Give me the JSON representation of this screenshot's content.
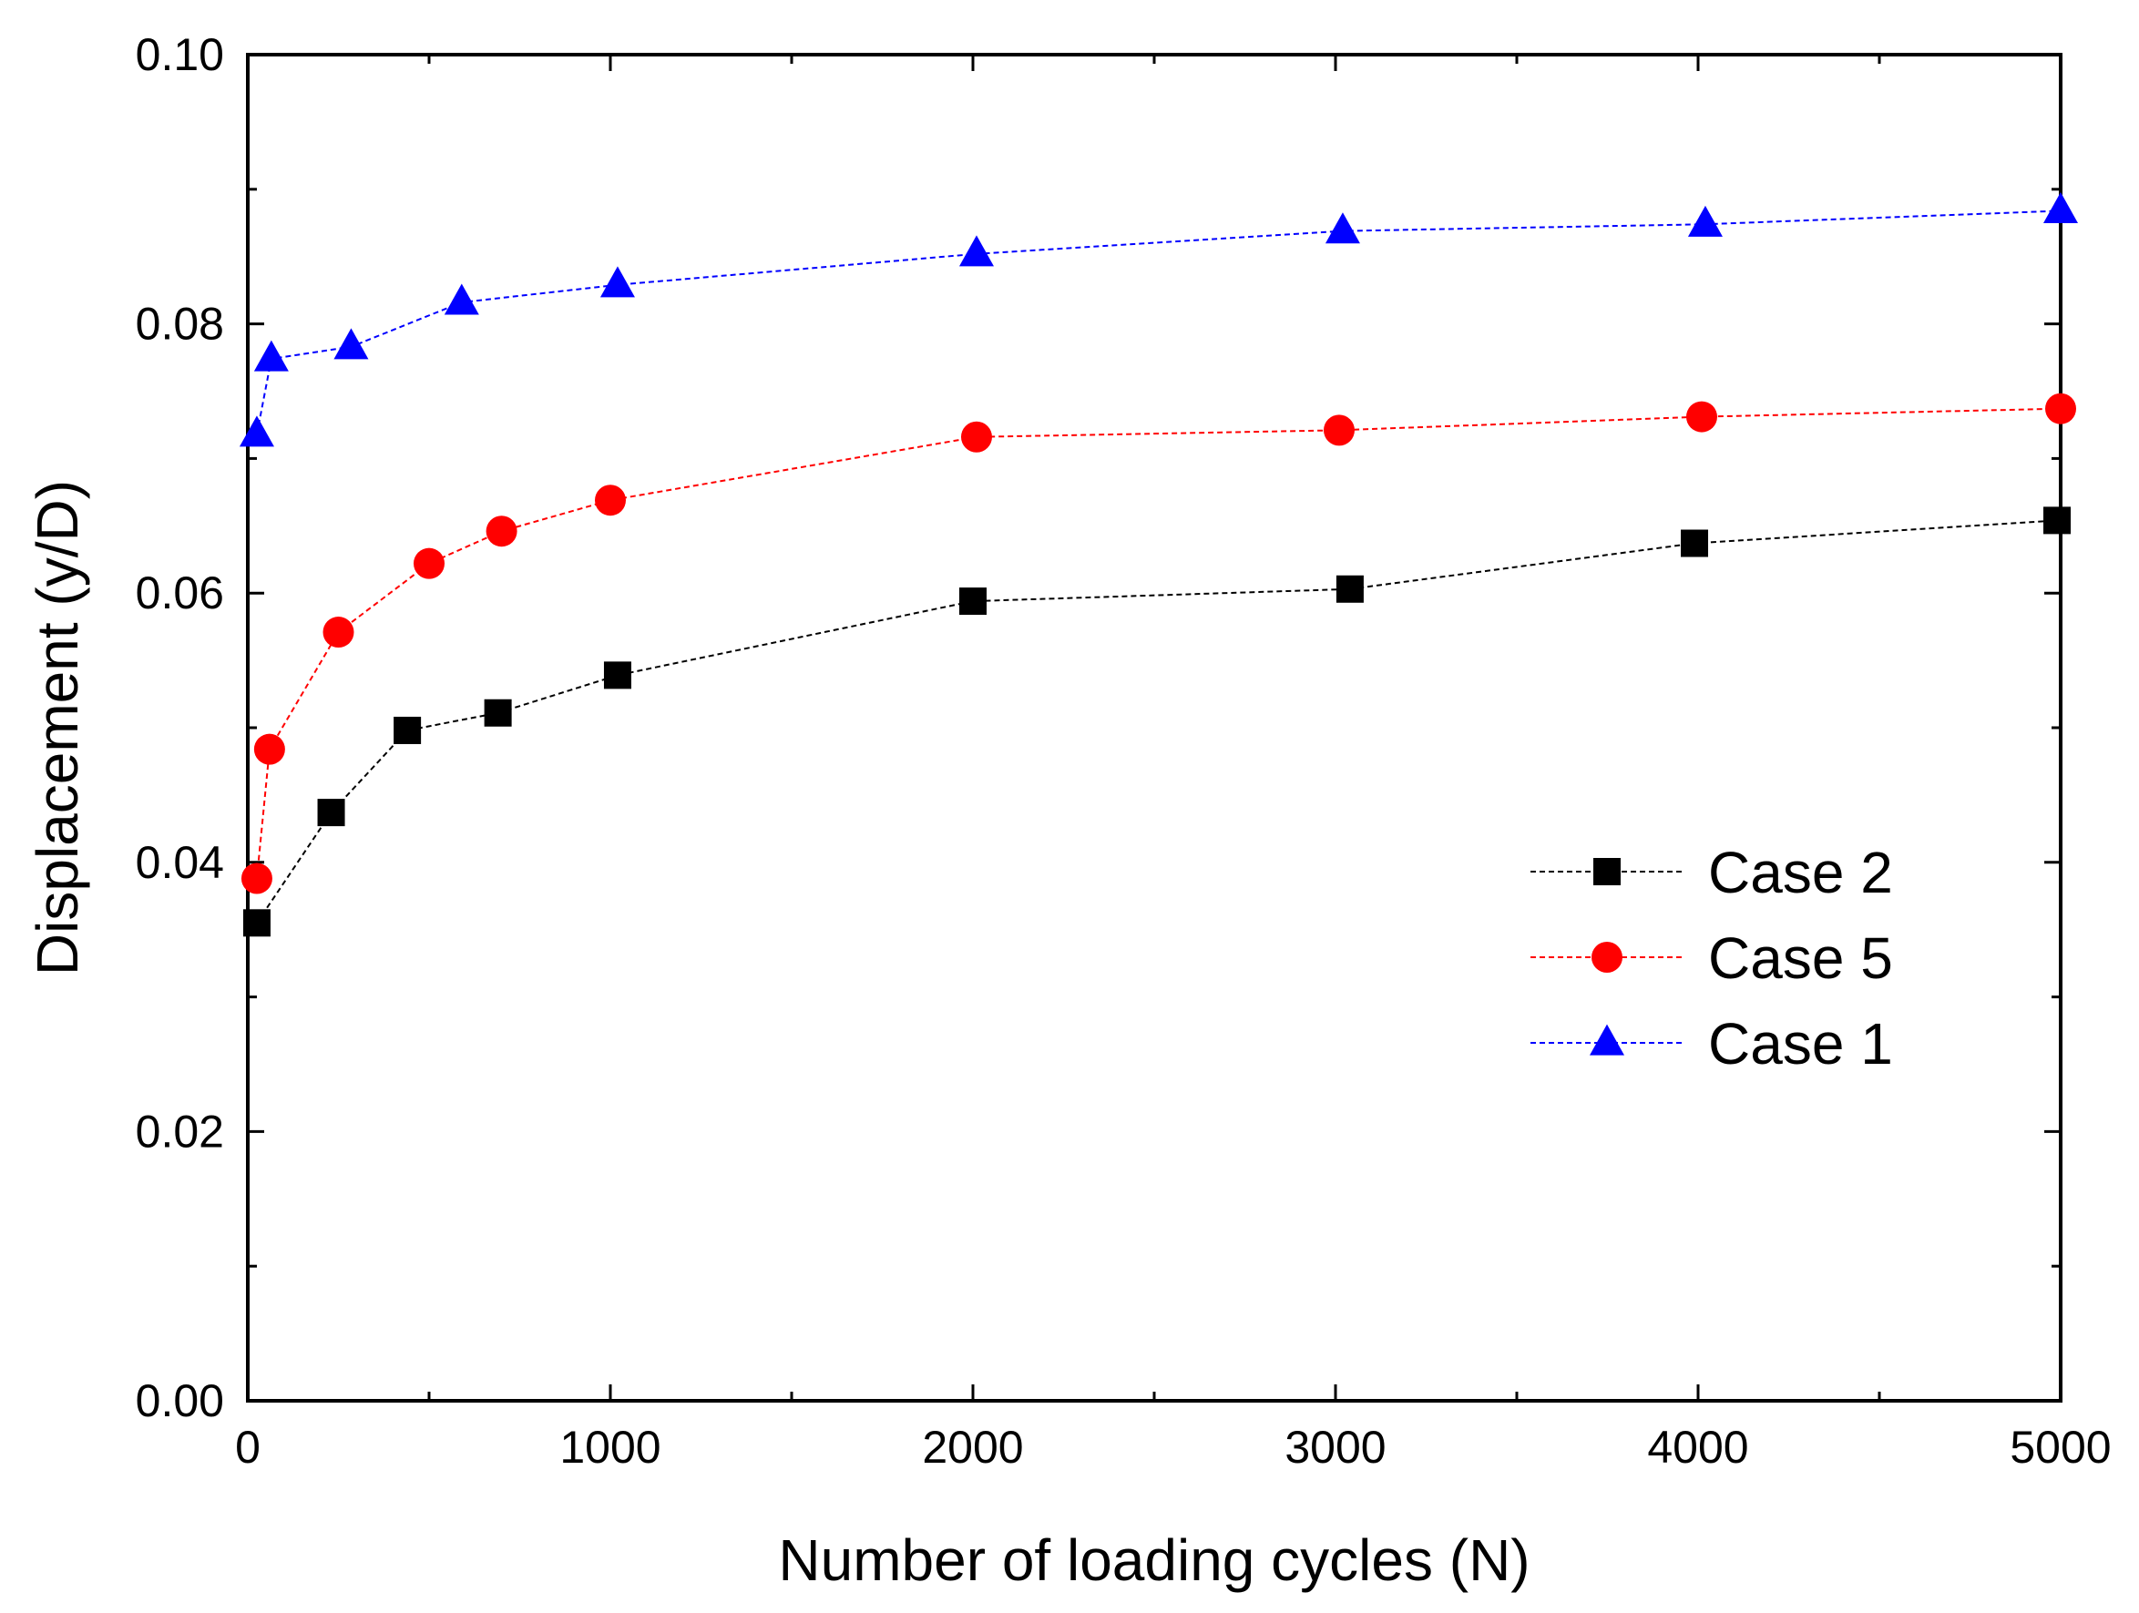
{
  "chart_data": {
    "type": "line",
    "title": "",
    "xlabel": "Number of loading cycles (N)",
    "ylabel": "Displacement (y/D)",
    "xlim": [
      0,
      5000
    ],
    "ylim": [
      0,
      0.1
    ],
    "xticks": [
      0,
      1000,
      2000,
      3000,
      4000,
      5000
    ],
    "xtick_labels": [
      "0",
      "1000",
      "2000",
      "3000",
      "4000",
      "5000"
    ],
    "yticks": [
      0,
      0.02,
      0.04,
      0.06,
      0.08,
      0.1
    ],
    "ytick_labels": [
      "0.00",
      "0.02",
      "0.04",
      "0.06",
      "0.08",
      "0.10"
    ],
    "grid": false,
    "legend_position": "center-right",
    "series": [
      {
        "name": "Case 2",
        "marker": "square",
        "color": "#000000",
        "line_style": "dashed",
        "points": [
          {
            "x": 25,
            "y": 0.0355
          },
          {
            "x": 230,
            "y": 0.0437
          },
          {
            "x": 440,
            "y": 0.0498
          },
          {
            "x": 690,
            "y": 0.0511
          },
          {
            "x": 1020,
            "y": 0.0539
          },
          {
            "x": 2000,
            "y": 0.0594
          },
          {
            "x": 3040,
            "y": 0.0603
          },
          {
            "x": 3990,
            "y": 0.0637
          },
          {
            "x": 4990,
            "y": 0.0654
          }
        ]
      },
      {
        "name": "Case 5",
        "marker": "circle",
        "color": "#ff0000",
        "line_style": "dashed",
        "points": [
          {
            "x": 25,
            "y": 0.0388
          },
          {
            "x": 60,
            "y": 0.0484
          },
          {
            "x": 250,
            "y": 0.0571
          },
          {
            "x": 500,
            "y": 0.0622
          },
          {
            "x": 700,
            "y": 0.0646
          },
          {
            "x": 1000,
            "y": 0.0669
          },
          {
            "x": 2010,
            "y": 0.0716
          },
          {
            "x": 3010,
            "y": 0.0721
          },
          {
            "x": 4010,
            "y": 0.0731
          },
          {
            "x": 5000,
            "y": 0.0737
          }
        ]
      },
      {
        "name": "Case 1",
        "marker": "triangle",
        "color": "#0000ff",
        "line_style": "dashed",
        "points": [
          {
            "x": 25,
            "y": 0.0718
          },
          {
            "x": 65,
            "y": 0.0774
          },
          {
            "x": 285,
            "y": 0.0783
          },
          {
            "x": 590,
            "y": 0.0816
          },
          {
            "x": 1020,
            "y": 0.0829
          },
          {
            "x": 2010,
            "y": 0.0852
          },
          {
            "x": 3020,
            "y": 0.0869
          },
          {
            "x": 4020,
            "y": 0.0874
          },
          {
            "x": 5000,
            "y": 0.0884
          }
        ]
      }
    ]
  }
}
